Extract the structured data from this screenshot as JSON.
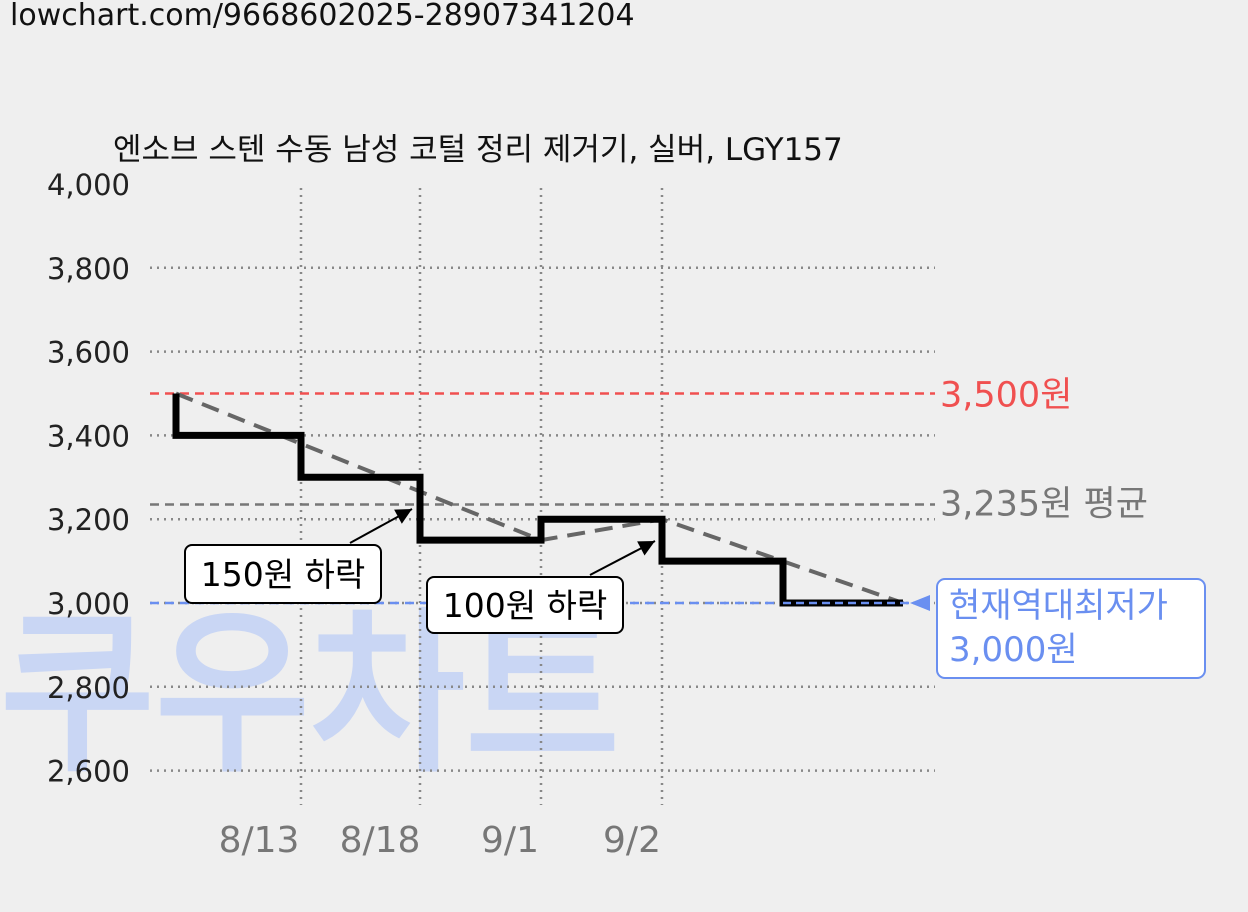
{
  "url_text": "lowchart.com/9668602025-28907341204",
  "watermark": "쿠우차트",
  "chart_data": {
    "type": "line",
    "title": "엔소브 스텐 수동 남성 코털 정리 제거기, 실버, LGY157",
    "x_ticks": [
      "8/13",
      "8/18",
      "9/1",
      "9/2"
    ],
    "y_ticks": [
      "4,000",
      "3,800",
      "3,600",
      "3,400",
      "3,200",
      "3,000",
      "2,800",
      "2,600"
    ],
    "y_tick_values": [
      4000,
      3800,
      3600,
      3400,
      3200,
      3000,
      2800,
      2600
    ],
    "ylim": [
      2600,
      4000
    ],
    "series": [
      {
        "values": [
          3500,
          3400,
          3300,
          3150,
          3200,
          3100,
          3000,
          3000
        ],
        "color": "#000000",
        "style": "step"
      }
    ],
    "max_line": {
      "value": 3500,
      "label": "3,500원",
      "color": "#f05050"
    },
    "avg_line": {
      "value": 3235,
      "label": "3,235원 평균",
      "color": "#777777"
    },
    "min_line": {
      "value": 3000,
      "label_lines": [
        "현재역대최저가",
        "3,000원"
      ],
      "color": "#6a8ff0"
    },
    "annotations": [
      {
        "text": "150원 하락"
      },
      {
        "text": "100원 하락"
      }
    ],
    "grid": true
  },
  "colors": {
    "background": "#efefef",
    "grid": "#888888",
    "trend": "#666666",
    "watermark": "#c9d6f4"
  }
}
